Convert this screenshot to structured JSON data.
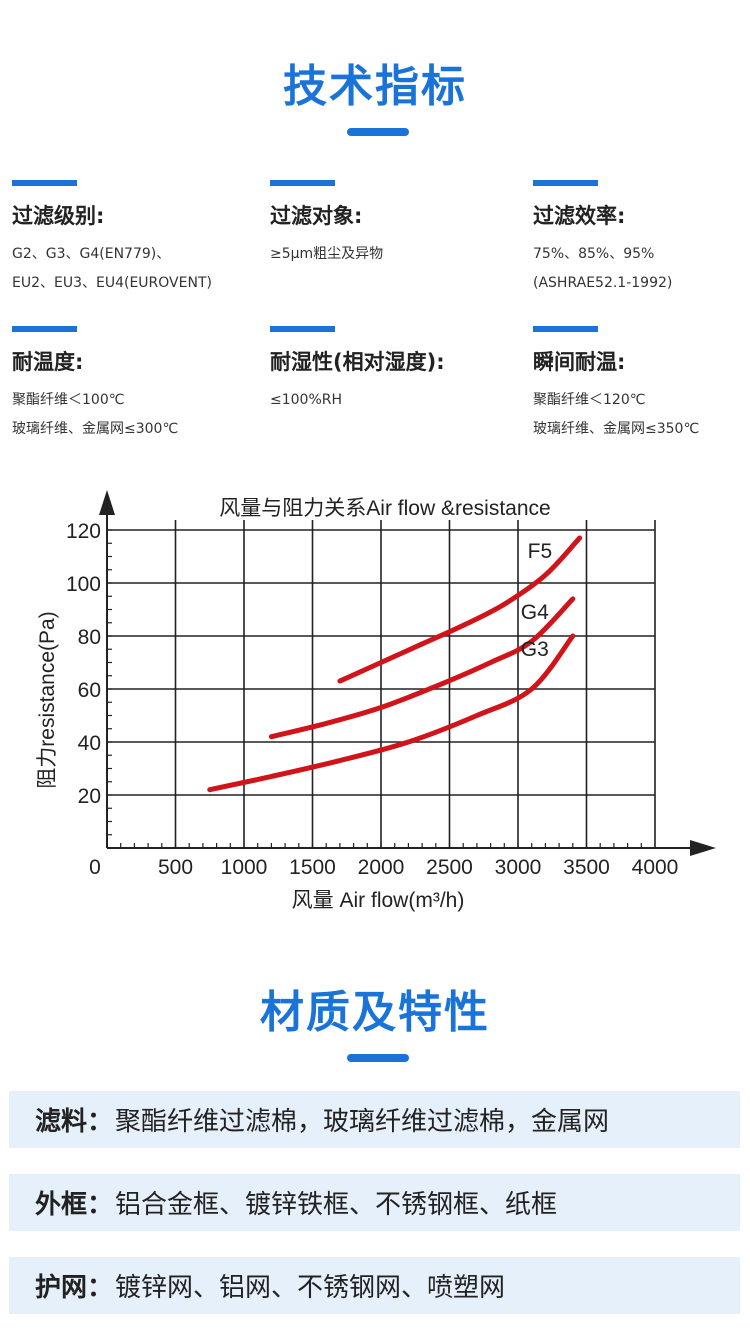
{
  "tech": {
    "title": "技术指标",
    "specs": [
      {
        "label": "过滤级别:",
        "lines": [
          "G2、G3、G4(EN779)、",
          "EU2、EU3、EU4(EUROVENT)"
        ]
      },
      {
        "label": "过滤对象:",
        "lines": [
          "≥5μm粗尘及异物"
        ]
      },
      {
        "label": "过滤效率:",
        "lines": [
          "75%、85%、95%",
          "(ASHRAE52.1-1992)"
        ]
      },
      {
        "label": "耐温度:",
        "lines": [
          "聚酯纤维＜100℃",
          "玻璃纤维、金属网≤300℃"
        ]
      },
      {
        "label": "耐湿性(相对湿度):",
        "lines": [
          "≤100%RH"
        ]
      },
      {
        "label": "瞬间耐温:",
        "lines": [
          "聚酯纤维＜120℃",
          "玻璃纤维、金属网≤350℃"
        ]
      }
    ]
  },
  "chart_data": {
    "type": "line",
    "title": "风量与阻力关系Air flow &resistance",
    "xlabel": "风量 Air flow(m³/h)",
    "ylabel": "阻力resistance(Pa)",
    "xlim": [
      0,
      4000
    ],
    "ylim": [
      0,
      120
    ],
    "x_ticks": [
      0,
      500,
      1000,
      1500,
      2000,
      2500,
      3000,
      3500,
      4000
    ],
    "y_ticks": [
      20,
      40,
      60,
      80,
      100,
      120
    ],
    "grid": true,
    "line_color": "#d0141a",
    "series": [
      {
        "name": "F5",
        "x": [
          1700,
          2000,
          2300,
          2600,
          2900,
          3200,
          3450
        ],
        "y": [
          63,
          70,
          77,
          84,
          92,
          103,
          117
        ]
      },
      {
        "name": "G4",
        "x": [
          1200,
          1600,
          2000,
          2400,
          2800,
          3100,
          3400
        ],
        "y": [
          42,
          47,
          53,
          61,
          70,
          78,
          94
        ]
      },
      {
        "name": "G3",
        "x": [
          750,
          1200,
          1700,
          2200,
          2700,
          3100,
          3400
        ],
        "y": [
          22,
          27,
          33,
          40,
          50,
          60,
          80
        ]
      }
    ]
  },
  "material": {
    "title": "材质及特性",
    "items": [
      {
        "key": "滤料：",
        "value": "聚酯纤维过滤棉，玻璃纤维过滤棉，金属网"
      },
      {
        "key": "外框：",
        "value": "铝合金框、镀锌铁框、不锈钢框、纸框"
      },
      {
        "key": "护网：",
        "value": "镀锌网、铝网、不锈钢网、喷塑网"
      }
    ]
  }
}
